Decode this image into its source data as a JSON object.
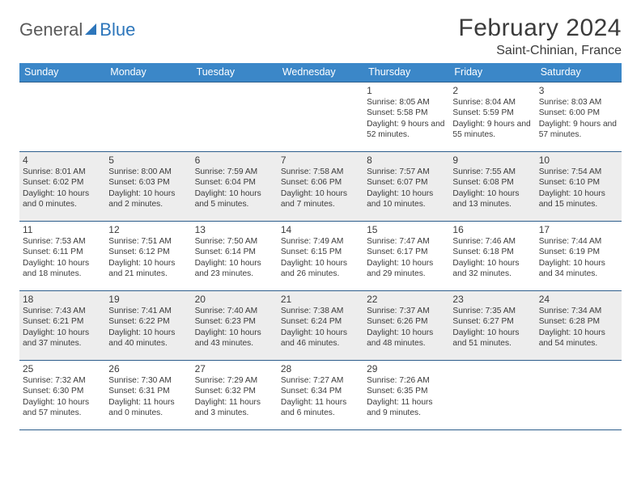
{
  "logo": {
    "part1": "General",
    "part2": "Blue"
  },
  "title": "February 2024",
  "location": "Saint-Chinian, France",
  "colors": {
    "header_bg": "#3b87c8",
    "header_text": "#ffffff",
    "rule": "#2d5e8c",
    "alt_row": "#ededed",
    "text": "#3b3b3b",
    "logo_blue": "#2d76bb"
  },
  "day_headers": [
    "Sunday",
    "Monday",
    "Tuesday",
    "Wednesday",
    "Thursday",
    "Friday",
    "Saturday"
  ],
  "weeks": [
    {
      "alt": false,
      "cells": [
        {
          "n": "",
          "sr": "",
          "ss": "",
          "dl": ""
        },
        {
          "n": "",
          "sr": "",
          "ss": "",
          "dl": ""
        },
        {
          "n": "",
          "sr": "",
          "ss": "",
          "dl": ""
        },
        {
          "n": "",
          "sr": "",
          "ss": "",
          "dl": ""
        },
        {
          "n": "1",
          "sr": "Sunrise: 8:05 AM",
          "ss": "Sunset: 5:58 PM",
          "dl": "Daylight: 9 hours and 52 minutes."
        },
        {
          "n": "2",
          "sr": "Sunrise: 8:04 AM",
          "ss": "Sunset: 5:59 PM",
          "dl": "Daylight: 9 hours and 55 minutes."
        },
        {
          "n": "3",
          "sr": "Sunrise: 8:03 AM",
          "ss": "Sunset: 6:00 PM",
          "dl": "Daylight: 9 hours and 57 minutes."
        }
      ]
    },
    {
      "alt": true,
      "cells": [
        {
          "n": "4",
          "sr": "Sunrise: 8:01 AM",
          "ss": "Sunset: 6:02 PM",
          "dl": "Daylight: 10 hours and 0 minutes."
        },
        {
          "n": "5",
          "sr": "Sunrise: 8:00 AM",
          "ss": "Sunset: 6:03 PM",
          "dl": "Daylight: 10 hours and 2 minutes."
        },
        {
          "n": "6",
          "sr": "Sunrise: 7:59 AM",
          "ss": "Sunset: 6:04 PM",
          "dl": "Daylight: 10 hours and 5 minutes."
        },
        {
          "n": "7",
          "sr": "Sunrise: 7:58 AM",
          "ss": "Sunset: 6:06 PM",
          "dl": "Daylight: 10 hours and 7 minutes."
        },
        {
          "n": "8",
          "sr": "Sunrise: 7:57 AM",
          "ss": "Sunset: 6:07 PM",
          "dl": "Daylight: 10 hours and 10 minutes."
        },
        {
          "n": "9",
          "sr": "Sunrise: 7:55 AM",
          "ss": "Sunset: 6:08 PM",
          "dl": "Daylight: 10 hours and 13 minutes."
        },
        {
          "n": "10",
          "sr": "Sunrise: 7:54 AM",
          "ss": "Sunset: 6:10 PM",
          "dl": "Daylight: 10 hours and 15 minutes."
        }
      ]
    },
    {
      "alt": false,
      "cells": [
        {
          "n": "11",
          "sr": "Sunrise: 7:53 AM",
          "ss": "Sunset: 6:11 PM",
          "dl": "Daylight: 10 hours and 18 minutes."
        },
        {
          "n": "12",
          "sr": "Sunrise: 7:51 AM",
          "ss": "Sunset: 6:12 PM",
          "dl": "Daylight: 10 hours and 21 minutes."
        },
        {
          "n": "13",
          "sr": "Sunrise: 7:50 AM",
          "ss": "Sunset: 6:14 PM",
          "dl": "Daylight: 10 hours and 23 minutes."
        },
        {
          "n": "14",
          "sr": "Sunrise: 7:49 AM",
          "ss": "Sunset: 6:15 PM",
          "dl": "Daylight: 10 hours and 26 minutes."
        },
        {
          "n": "15",
          "sr": "Sunrise: 7:47 AM",
          "ss": "Sunset: 6:17 PM",
          "dl": "Daylight: 10 hours and 29 minutes."
        },
        {
          "n": "16",
          "sr": "Sunrise: 7:46 AM",
          "ss": "Sunset: 6:18 PM",
          "dl": "Daylight: 10 hours and 32 minutes."
        },
        {
          "n": "17",
          "sr": "Sunrise: 7:44 AM",
          "ss": "Sunset: 6:19 PM",
          "dl": "Daylight: 10 hours and 34 minutes."
        }
      ]
    },
    {
      "alt": true,
      "cells": [
        {
          "n": "18",
          "sr": "Sunrise: 7:43 AM",
          "ss": "Sunset: 6:21 PM",
          "dl": "Daylight: 10 hours and 37 minutes."
        },
        {
          "n": "19",
          "sr": "Sunrise: 7:41 AM",
          "ss": "Sunset: 6:22 PM",
          "dl": "Daylight: 10 hours and 40 minutes."
        },
        {
          "n": "20",
          "sr": "Sunrise: 7:40 AM",
          "ss": "Sunset: 6:23 PM",
          "dl": "Daylight: 10 hours and 43 minutes."
        },
        {
          "n": "21",
          "sr": "Sunrise: 7:38 AM",
          "ss": "Sunset: 6:24 PM",
          "dl": "Daylight: 10 hours and 46 minutes."
        },
        {
          "n": "22",
          "sr": "Sunrise: 7:37 AM",
          "ss": "Sunset: 6:26 PM",
          "dl": "Daylight: 10 hours and 48 minutes."
        },
        {
          "n": "23",
          "sr": "Sunrise: 7:35 AM",
          "ss": "Sunset: 6:27 PM",
          "dl": "Daylight: 10 hours and 51 minutes."
        },
        {
          "n": "24",
          "sr": "Sunrise: 7:34 AM",
          "ss": "Sunset: 6:28 PM",
          "dl": "Daylight: 10 hours and 54 minutes."
        }
      ]
    },
    {
      "alt": false,
      "cells": [
        {
          "n": "25",
          "sr": "Sunrise: 7:32 AM",
          "ss": "Sunset: 6:30 PM",
          "dl": "Daylight: 10 hours and 57 minutes."
        },
        {
          "n": "26",
          "sr": "Sunrise: 7:30 AM",
          "ss": "Sunset: 6:31 PM",
          "dl": "Daylight: 11 hours and 0 minutes."
        },
        {
          "n": "27",
          "sr": "Sunrise: 7:29 AM",
          "ss": "Sunset: 6:32 PM",
          "dl": "Daylight: 11 hours and 3 minutes."
        },
        {
          "n": "28",
          "sr": "Sunrise: 7:27 AM",
          "ss": "Sunset: 6:34 PM",
          "dl": "Daylight: 11 hours and 6 minutes."
        },
        {
          "n": "29",
          "sr": "Sunrise: 7:26 AM",
          "ss": "Sunset: 6:35 PM",
          "dl": "Daylight: 11 hours and 9 minutes."
        },
        {
          "n": "",
          "sr": "",
          "ss": "",
          "dl": ""
        },
        {
          "n": "",
          "sr": "",
          "ss": "",
          "dl": ""
        }
      ]
    }
  ]
}
